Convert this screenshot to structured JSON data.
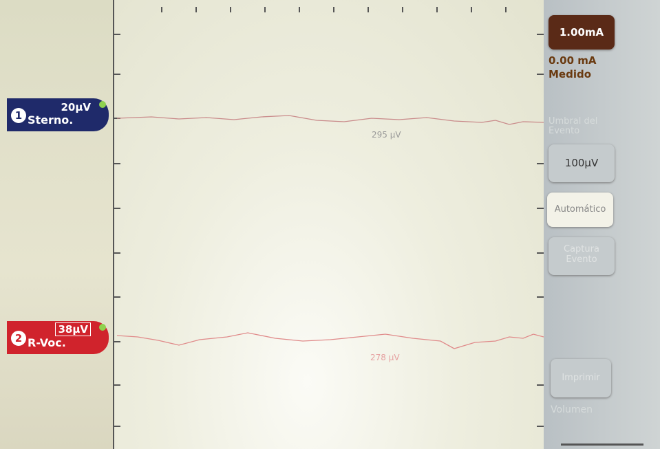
{
  "channels": [
    {
      "number": "1",
      "amplitude": "20µV",
      "name": "Sterno.",
      "reading": "295 µV"
    },
    {
      "number": "2",
      "amplitude": "38µV",
      "name": "R-Voc.",
      "reading": "278 µV"
    }
  ],
  "sidebar": {
    "stimulus_button": "1.00mA",
    "measured_value": "0.00 mA",
    "measured_label": "Medido",
    "threshold_label": "Umbral del Evento",
    "threshold_button": "100µV",
    "auto_button": "Automático",
    "capture_button": "Captura Evento",
    "print_button": "Imprimir",
    "volume_label": "Volumen"
  }
}
